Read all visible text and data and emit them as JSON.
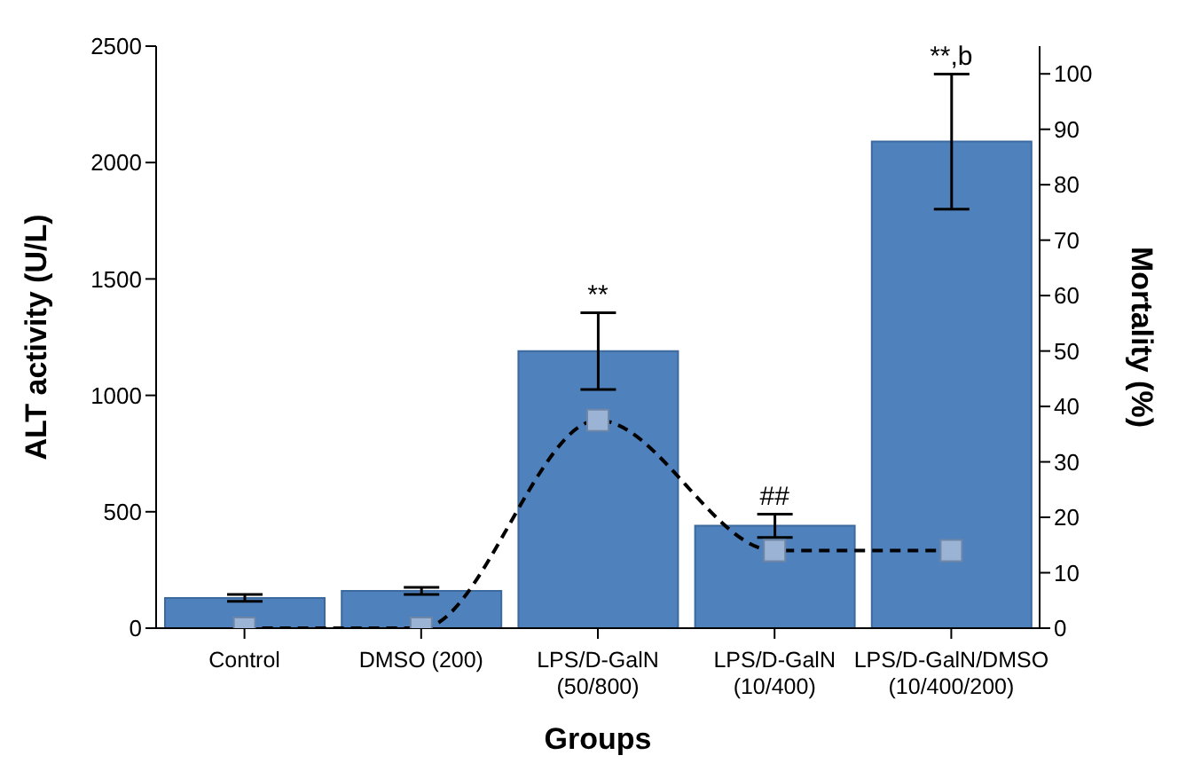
{
  "chart_data": {
    "type": "bar",
    "xlabel": "Groups",
    "ylabel": "ALT activity (U/L)",
    "y2label": "Mortality (%)",
    "categories": [
      "Control",
      "DMSO (200)",
      "LPS/D-GalN (50/800)",
      "LPS/D-GalN (10/400)",
      "LPS/D-GalN/DMSO  (10/400/200)"
    ],
    "series": [
      {
        "color": "#4f81bd",
        "values": [
          130,
          160,
          1190,
          440,
          2090
        ],
        "errors": [
          15,
          15,
          165,
          50,
          290
        ]
      },
      {
        "type": "line",
        "axis": "y2",
        "color": "#000000",
        "values": [
          0,
          0,
          37.5,
          14,
          14
        ],
        "line_style": "dashed",
        "marker": "square"
      }
    ],
    "ylim": [
      0,
      2500
    ],
    "yticks": [
      0,
      500,
      1000,
      1500,
      2000,
      2500
    ],
    "y2lim": [
      0,
      105
    ],
    "y2ticks": [
      0,
      10,
      20,
      30,
      40,
      50,
      60,
      70,
      80,
      90,
      100
    ],
    "grid": false,
    "legend": false,
    "annotations": [
      {
        "text": "**",
        "x": "LPS/D-GalN (50/800)",
        "y": 1355
      },
      {
        "text": "##",
        "x": "LPS/D-GalN (10/400)",
        "y": 490
      },
      {
        "text": "**,b",
        "x": "LPS/D-GalN/DMSO  (10/400/200)",
        "y": 2380
      }
    ]
  }
}
